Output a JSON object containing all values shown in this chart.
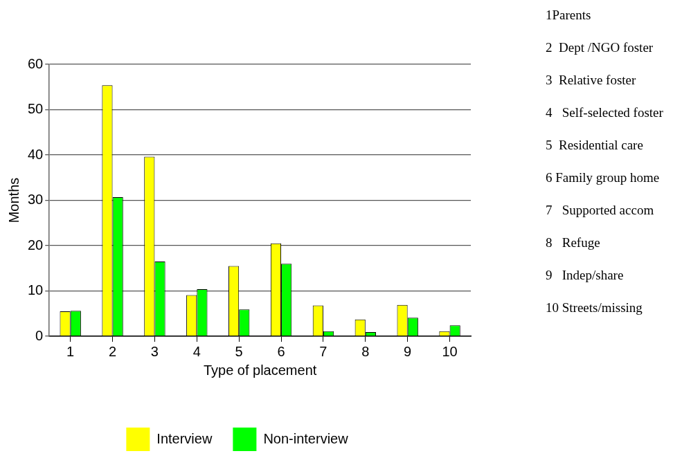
{
  "chart_data": {
    "type": "bar",
    "xlabel": "Type of placement",
    "ylabel": "Months",
    "categories": [
      "1",
      "2",
      "3",
      "4",
      "5",
      "6",
      "7",
      "8",
      "9",
      "10"
    ],
    "series": [
      {
        "name": "Interview",
        "color": "#ffff00",
        "values": [
          5.5,
          55.4,
          39.6,
          9.1,
          15.5,
          20.5,
          6.8,
          3.7,
          6.9,
          1.1
        ]
      },
      {
        "name": "Non-interview",
        "color": "#00ff00",
        "values": [
          5.6,
          30.7,
          16.5,
          10.4,
          5.9,
          16.0,
          1.1,
          0.9,
          4.1,
          2.4
        ]
      }
    ],
    "ylim": [
      0,
      60
    ],
    "yticks": [
      0,
      10,
      20,
      30,
      40,
      50,
      60
    ],
    "grid": "y",
    "legend": "bottom",
    "annotations": [
      "1Parents",
      "2  Dept /NGO foster",
      "3  Relative foster",
      "4   Self-selected foster",
      "5  Residential care",
      "6 Family group home",
      "7   Supported accom",
      "8   Refuge",
      "9   Indep/share",
      "10 Streets/missing"
    ]
  }
}
